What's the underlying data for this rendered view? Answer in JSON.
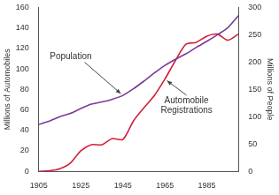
{
  "chart_data": {
    "type": "line",
    "x": [
      1905,
      1910,
      1915,
      1920,
      1925,
      1930,
      1935,
      1940,
      1945,
      1950,
      1955,
      1960,
      1965,
      1970,
      1975,
      1980,
      1985,
      1990,
      1995,
      2000
    ],
    "xlim": [
      1905,
      2000
    ],
    "xticks": [
      1905,
      1925,
      1945,
      1965,
      1985
    ],
    "ylim": [
      0,
      160
    ],
    "yticks": [
      0,
      20,
      40,
      60,
      80,
      100,
      120,
      140,
      160
    ],
    "y2lim": [
      0,
      300
    ],
    "y2ticks": [
      0,
      50,
      100,
      150,
      200,
      250,
      300
    ],
    "ylabel": "Millions of Automobiles",
    "y2label": "Millions of People",
    "grid": false,
    "series": [
      {
        "name": "Population",
        "color": "#7b3a96",
        "axis": "y2",
        "values": [
          86,
          92,
          100,
          106,
          115,
          123,
          127,
          132,
          139,
          151,
          165,
          180,
          194,
          205,
          215,
          227,
          238,
          250,
          263,
          285
        ]
      },
      {
        "name": "Automobile Registrations",
        "color": "#d0203a",
        "values": [
          0,
          0.5,
          2.5,
          8,
          20,
          26,
          26,
          32,
          31,
          49,
          62,
          74,
          90,
          108,
          124,
          126,
          132,
          134,
          128,
          134
        ]
      }
    ],
    "annotations": [
      {
        "text": "Population",
        "series": "Population"
      },
      {
        "text": "Automobile Registrations",
        "series": "Automobile Registrations"
      }
    ]
  }
}
